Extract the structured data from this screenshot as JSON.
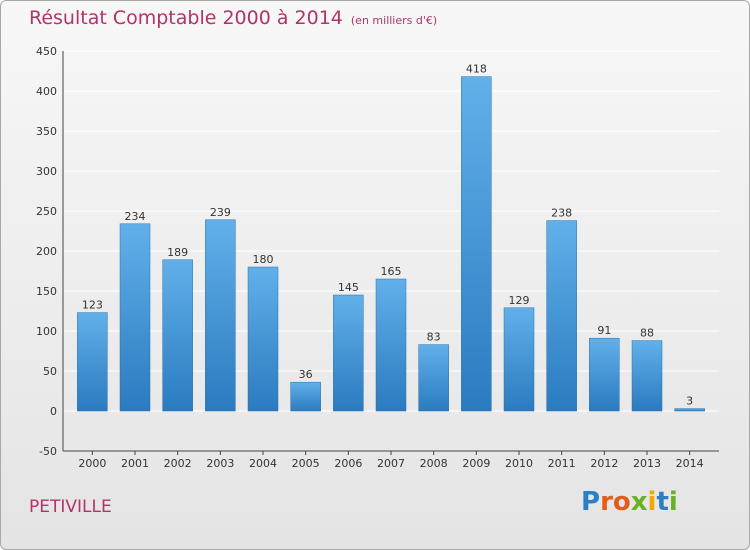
{
  "header": {
    "title": "Résultat Comptable 2000 à 2014",
    "subtitle": "(en milliers d'€)"
  },
  "footer": {
    "commune": "PETIVILLE",
    "logo": "Proxiti"
  },
  "colors": {
    "title": "#b1336a",
    "bar_top": "#62b0ea",
    "bar_bottom": "#2a7bc0",
    "grid": "#ffffff"
  },
  "chart_data": {
    "type": "bar",
    "title": "Résultat Comptable 2000 à 2014",
    "subtitle": "(en milliers d'€)",
    "xlabel": "",
    "ylabel": "",
    "categories": [
      "2000",
      "2001",
      "2002",
      "2003",
      "2004",
      "2005",
      "2006",
      "2007",
      "2008",
      "2009",
      "2010",
      "2011",
      "2012",
      "2013",
      "2014"
    ],
    "values": [
      123,
      234,
      189,
      239,
      180,
      36,
      145,
      165,
      83,
      418,
      129,
      238,
      91,
      88,
      3
    ],
    "ylim": [
      -50,
      450
    ],
    "yticks": [
      -50,
      0,
      50,
      100,
      150,
      200,
      250,
      300,
      350,
      400,
      450
    ],
    "grid": true,
    "legend": "none"
  }
}
